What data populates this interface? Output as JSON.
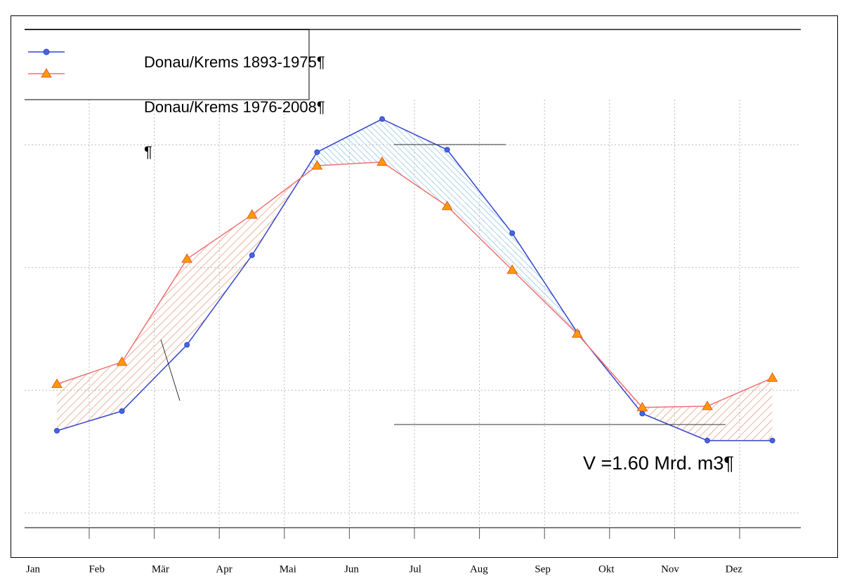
{
  "chart_data": {
    "type": "line",
    "categories": [
      "Jan",
      "Feb",
      "Mär",
      "Apr",
      "Mai",
      "Jun",
      "Jul",
      "Aug",
      "Sep",
      "Okt",
      "Nov",
      "Dez"
    ],
    "series": [
      {
        "name": "Donau/Krems 1893-1975¶",
        "color": "#3344cc",
        "marker": "circle",
        "values": [
          0.67,
          0.83,
          1.37,
          2.1,
          2.94,
          3.21,
          2.96,
          2.28,
          1.47,
          0.81,
          0.59,
          0.59
        ]
      },
      {
        "name": "Donau/Krems 1976-2008¶",
        "color": "#f07070",
        "marker": "triangle",
        "values": [
          1.05,
          1.23,
          2.07,
          2.43,
          2.83,
          2.86,
          2.5,
          1.98,
          1.46,
          0.86,
          0.87,
          1.1
        ]
      }
    ],
    "legend_extra": "¶",
    "annotation": "V =1.60 Mrd. m3¶",
    "ylim": [
      -0.12,
      3.94
    ],
    "yticks": [
      0,
      1,
      2,
      3
    ],
    "grid": true
  }
}
